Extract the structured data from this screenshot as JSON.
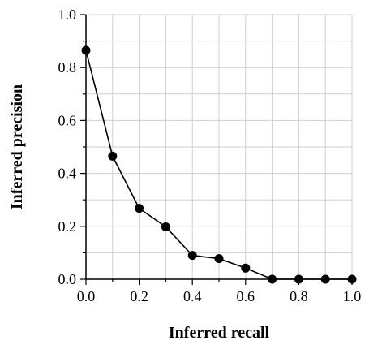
{
  "chart_data": {
    "type": "line",
    "xlabel": "Inferred recall",
    "ylabel": "Inferred precision",
    "xlim": [
      0.0,
      1.0
    ],
    "ylim": [
      0.0,
      1.0
    ],
    "xticks": [
      "0.0",
      "0.2",
      "0.4",
      "0.6",
      "0.8",
      "1.0"
    ],
    "yticks": [
      "0.0",
      "0.2",
      "0.4",
      "0.6",
      "0.8",
      "1.0"
    ],
    "grid": true,
    "legend": "none",
    "series": [
      {
        "x": [
          0.0,
          0.1,
          0.2,
          0.3,
          0.4,
          0.5,
          0.6,
          0.7,
          0.8,
          0.9,
          1.0
        ],
        "y": [
          0.865,
          0.465,
          0.268,
          0.198,
          0.09,
          0.078,
          0.042,
          0.0,
          0.0,
          0.0,
          0.0
        ],
        "color": "#000000"
      }
    ]
  }
}
